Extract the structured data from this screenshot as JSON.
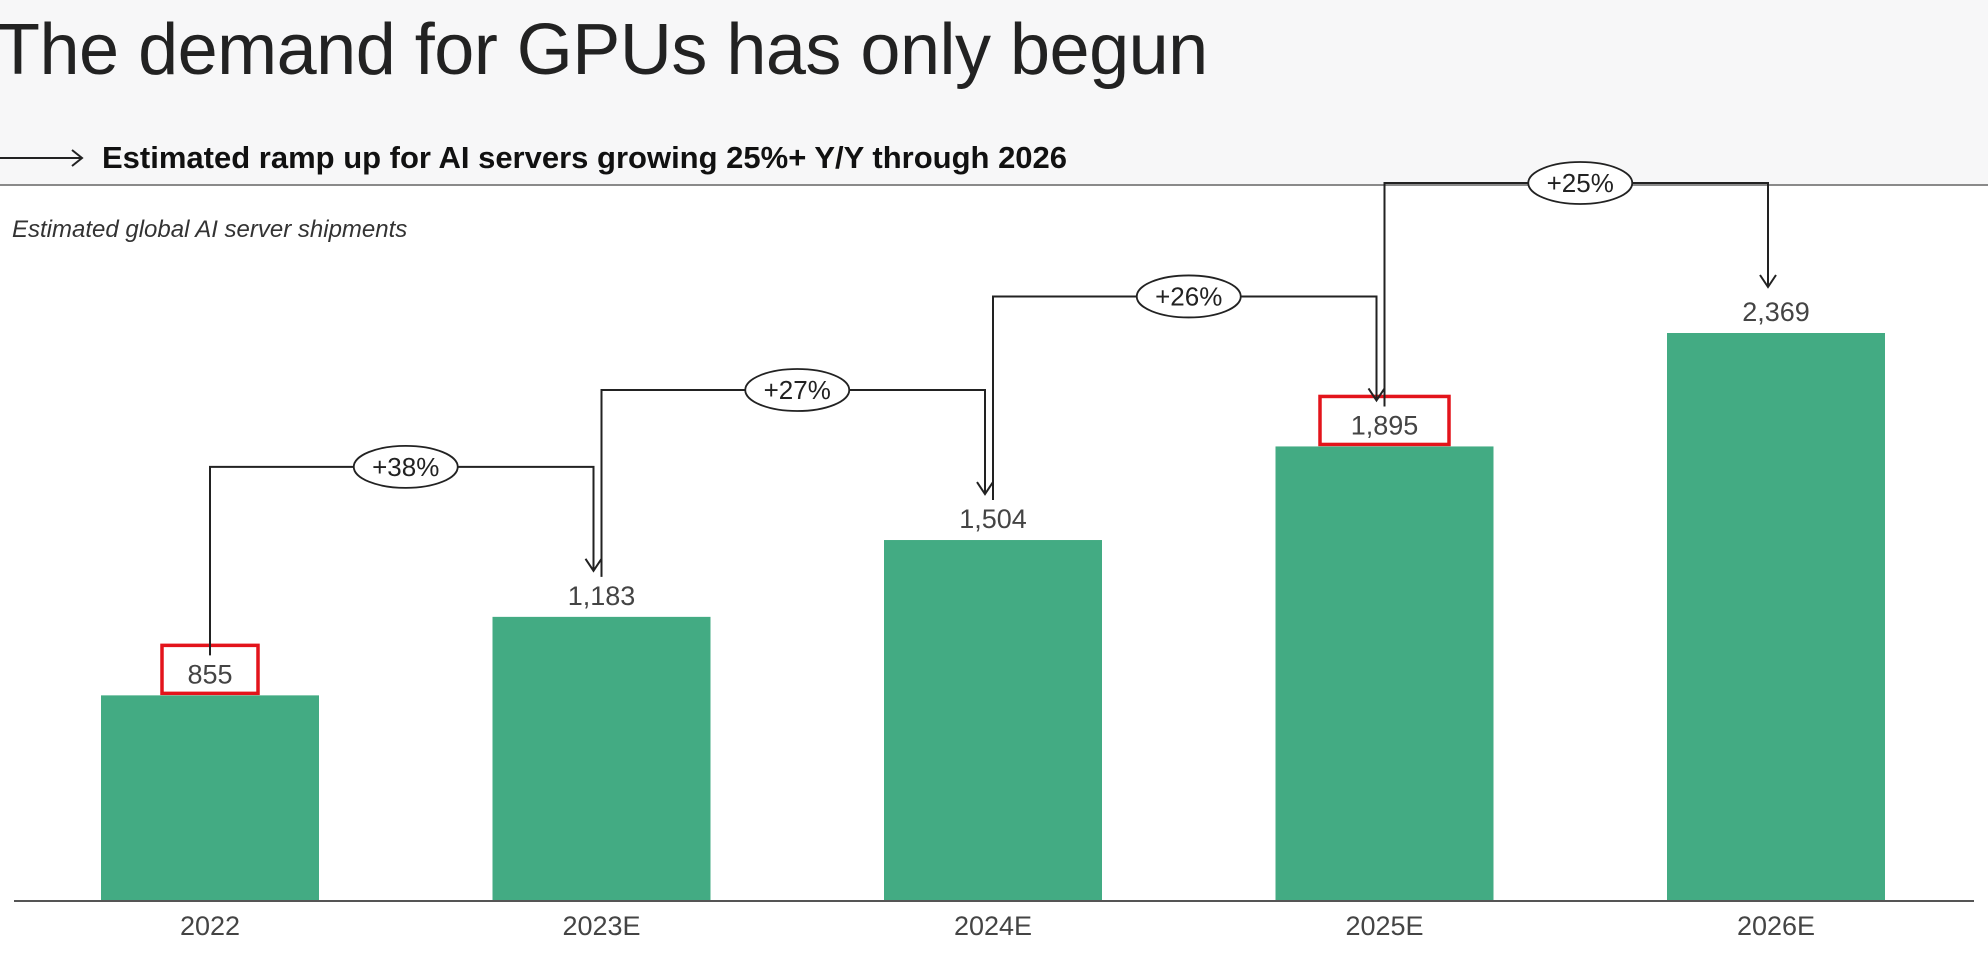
{
  "header": {
    "title": "The demand for GPUs has only begun",
    "subtitle": "Estimated ramp up for AI servers growing 25%+ Y/Y through 2026"
  },
  "chart_caption": "Estimated global AI server shipments",
  "colors": {
    "bar": "#43ab83",
    "highlight": "#e3141b",
    "connector": "#222222"
  },
  "chart_data": {
    "type": "bar",
    "title": "",
    "xlabel": "",
    "ylabel": "",
    "categories": [
      "2022",
      "2023E",
      "2024E",
      "2025E",
      "2026E"
    ],
    "values": [
      855,
      1183,
      1504,
      1895,
      2369
    ],
    "value_labels": [
      "855",
      "1,183",
      "1,504",
      "1,895",
      "2,369"
    ],
    "ylim": [
      0,
      2369
    ],
    "grid": false,
    "legend": "none",
    "annotations": [
      {
        "type": "growth",
        "from": "2022",
        "to": "2023E",
        "label": "+38%"
      },
      {
        "type": "growth",
        "from": "2023E",
        "to": "2024E",
        "label": "+27%"
      },
      {
        "type": "growth",
        "from": "2024E",
        "to": "2025E",
        "label": "+26%"
      },
      {
        "type": "growth",
        "from": "2025E",
        "to": "2026E",
        "label": "+25%"
      }
    ],
    "highlighted_values": [
      "2022",
      "2025E"
    ]
  }
}
